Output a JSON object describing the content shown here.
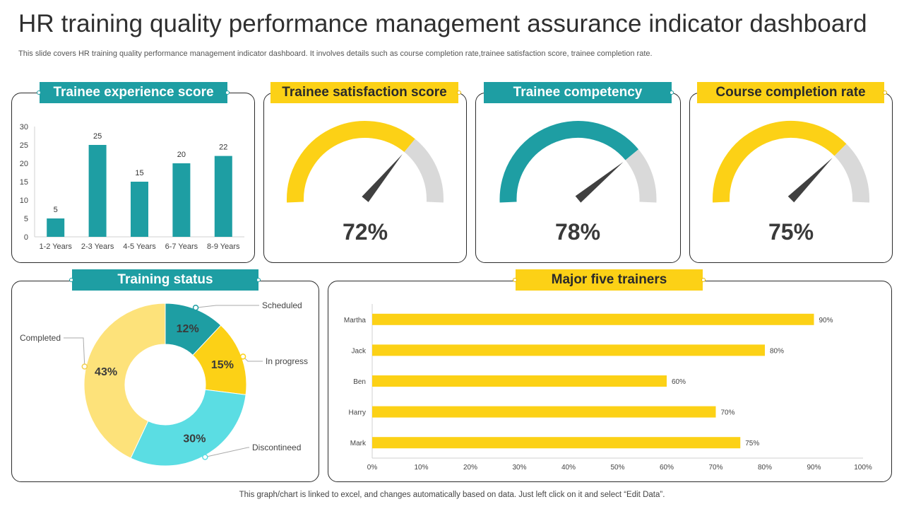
{
  "header": {
    "title": "HR training quality performance management assurance indicator dashboard",
    "subtitle": "This slide covers HR training quality performance management indicator dashboard. It involves details such as course completion rate,trainee satisfaction score, trainee completion rate."
  },
  "footer": {
    "note": "This graph/chart is linked to excel,  and changes automatically based on data. Just left click on it and select “Edit Data”."
  },
  "colors": {
    "teal": "#1e9ea3",
    "yellow": "#fcd116",
    "light_yellow": "#fde27a",
    "cyan": "#5bdde3",
    "grey": "#d9d9d9",
    "needle": "#404040"
  },
  "panels": {
    "experience": {
      "title": "Trainee experience score"
    },
    "satisfaction": {
      "title": "Trainee satisfaction score",
      "value_label": "72%"
    },
    "competency": {
      "title": "Trainee competency",
      "value_label": "78%"
    },
    "completion": {
      "title": "Course completion rate",
      "value_label": "75%"
    },
    "status": {
      "title": "Training status"
    },
    "trainers": {
      "title": "Major five trainers"
    }
  },
  "chart_data": [
    {
      "id": "experience",
      "type": "bar",
      "title": "Trainee experience score",
      "categories": [
        "1-2 Years",
        "2-3 Years",
        "4-5 Years",
        "6-7 Years",
        "8-9 Years"
      ],
      "values": [
        5,
        25,
        15,
        20,
        22
      ],
      "ylim": [
        0,
        30
      ],
      "yticks": [
        0,
        5,
        10,
        15,
        20,
        25,
        30
      ],
      "xlabel": "",
      "ylabel": ""
    },
    {
      "id": "satisfaction",
      "type": "gauge",
      "title": "Trainee satisfaction score",
      "value": 72,
      "max": 100,
      "color": "#fcd116"
    },
    {
      "id": "competency",
      "type": "gauge",
      "title": "Trainee competency",
      "value": 78,
      "max": 100,
      "color": "#1e9ea3"
    },
    {
      "id": "completion",
      "type": "gauge",
      "title": "Course completion rate",
      "value": 75,
      "max": 100,
      "color": "#fcd116"
    },
    {
      "id": "status",
      "type": "pie",
      "subtype": "donut",
      "title": "Training status",
      "labels": [
        "Scheduled",
        "In progress",
        "Discontineed",
        "Completed"
      ],
      "values": [
        12,
        15,
        30,
        43
      ],
      "value_labels": [
        "12%",
        "15%",
        "30%",
        "43%"
      ],
      "colors": [
        "#1e9ea3",
        "#fcd116",
        "#5bdde3",
        "#fde27a"
      ]
    },
    {
      "id": "trainers",
      "type": "bar",
      "orientation": "horizontal",
      "title": "Major five trainers",
      "categories": [
        "Martha",
        "Jack",
        "Ben",
        "Harry",
        "Mark"
      ],
      "values": [
        90,
        80,
        60,
        70,
        75
      ],
      "value_labels": [
        "90%",
        "80%",
        "60%",
        "70%",
        "75%"
      ],
      "xlim": [
        0,
        100
      ],
      "xticks": [
        "0%",
        "10%",
        "20%",
        "30%",
        "40%",
        "50%",
        "60%",
        "70%",
        "80%",
        "90%",
        "100%"
      ]
    }
  ]
}
